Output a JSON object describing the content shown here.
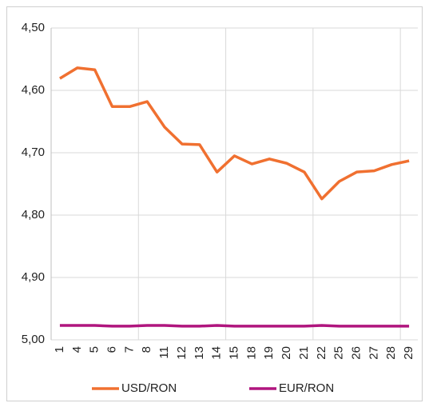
{
  "chart_data": {
    "type": "line",
    "categories": [
      "1",
      "4",
      "5",
      "6",
      "7",
      "8",
      "11",
      "12",
      "13",
      "14",
      "15",
      "18",
      "19",
      "20",
      "21",
      "22",
      "25",
      "26",
      "27",
      "28",
      "29"
    ],
    "series": [
      {
        "name": "USD/RON",
        "color": "#f07030",
        "values": [
          4.581,
          4.564,
          4.567,
          4.626,
          4.626,
          4.618,
          4.659,
          4.686,
          4.687,
          4.731,
          4.705,
          4.718,
          4.71,
          4.717,
          4.731,
          4.774,
          4.746,
          4.731,
          4.729,
          4.719,
          4.713
        ]
      },
      {
        "name": "EUR/RON",
        "color": "#b0157e",
        "values": [
          4.977,
          4.977,
          4.977,
          4.978,
          4.978,
          4.977,
          4.977,
          4.978,
          4.978,
          4.977,
          4.978,
          4.978,
          4.978,
          4.978,
          4.978,
          4.977,
          4.978,
          4.978,
          4.978,
          4.978,
          4.978
        ]
      }
    ],
    "ylim": [
      4.5,
      5.0
    ],
    "y_inverted": true,
    "yticks": [
      {
        "value": 4.5,
        "label": "4,50"
      },
      {
        "value": 4.6,
        "label": "4,60"
      },
      {
        "value": 4.7,
        "label": "4,70"
      },
      {
        "value": 4.8,
        "label": "4,80"
      },
      {
        "value": 4.9,
        "label": "4,90"
      },
      {
        "value": 5.0,
        "label": "5,00"
      }
    ],
    "grid": true,
    "legend": "bottom"
  }
}
